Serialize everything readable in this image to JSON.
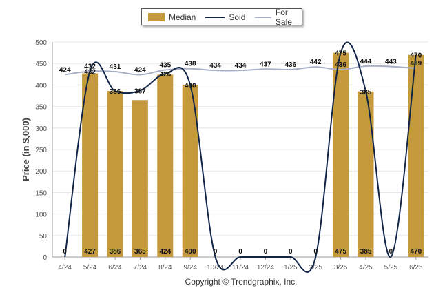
{
  "chart_data": {
    "type": "bar",
    "categories": [
      "4/24",
      "5/24",
      "6/24",
      "7/24",
      "8/24",
      "9/24",
      "10/24",
      "11/24",
      "12/24",
      "1/25",
      "2/25",
      "3/25",
      "4/25",
      "5/25",
      "6/25"
    ],
    "ylabel": "Price (in $,000)",
    "ylim": [
      0,
      500
    ],
    "yticks": [
      0,
      50,
      100,
      150,
      200,
      250,
      300,
      350,
      400,
      450,
      500
    ],
    "grid": true,
    "legend_position": "top-center",
    "series": [
      {
        "name": "Median",
        "type": "bar",
        "color": "#C49A3C",
        "values": [
          null,
          427,
          386,
          365,
          424,
          400,
          null,
          null,
          null,
          null,
          null,
          475,
          385,
          null,
          470
        ]
      },
      {
        "name": "Sold",
        "type": "line",
        "color": "#0F2447",
        "values": [
          0,
          432,
          386,
          387,
          426,
          400,
          0,
          0,
          0,
          0,
          0,
          475,
          385,
          0,
          470
        ]
      },
      {
        "name": "For Sale",
        "type": "line",
        "color": "#A7AEC6",
        "values": [
          424,
          432,
          431,
          424,
          435,
          438,
          434,
          434,
          437,
          436,
          442,
          436,
          444,
          443,
          439
        ]
      }
    ],
    "bar_value_labels": [
      "0",
      "427",
      "386",
      "365",
      "424",
      "400",
      "0",
      "0",
      "0",
      "0",
      "0",
      "475",
      "385",
      "0",
      "470"
    ]
  },
  "legend": {
    "median": "Median",
    "sold": "Sold",
    "for_sale": "For Sale"
  },
  "footer": {
    "copyright": "Copyright © Trendgraphix, Inc."
  }
}
